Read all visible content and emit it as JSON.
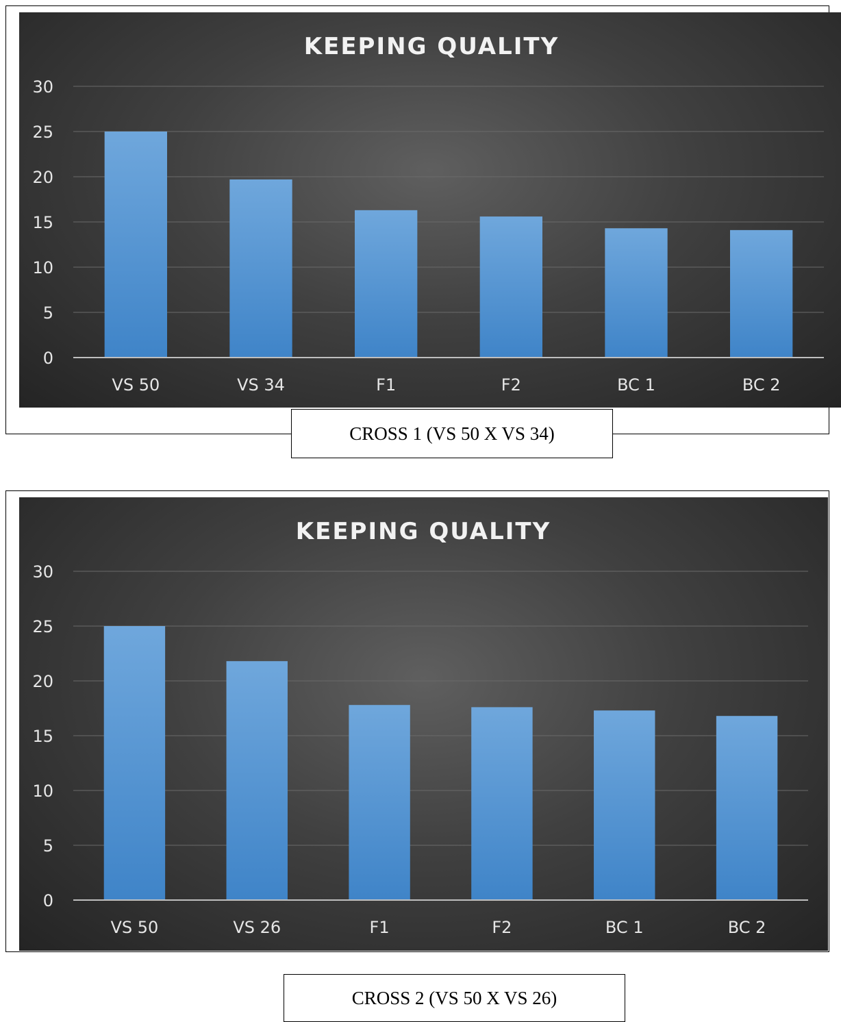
{
  "chart_data": [
    {
      "type": "bar",
      "title": "KEEPING QUALITY",
      "categories": [
        "VS 50",
        "VS 34",
        "F1",
        "F2",
        "BC 1",
        "BC 2"
      ],
      "values": [
        25.0,
        19.7,
        16.3,
        15.6,
        14.3,
        14.1
      ],
      "ylim": [
        0,
        30
      ],
      "yticks": [
        "0",
        "5",
        "10",
        "15",
        "20",
        "25",
        "30"
      ],
      "grid": true,
      "bar_color": "#5b9bd5",
      "caption": "CROSS 1 (VS 50 X VS 34)"
    },
    {
      "type": "bar",
      "title": "KEEPING QUALITY",
      "categories": [
        "VS 50",
        "VS 26",
        "F1",
        "F2",
        "BC 1",
        "BC 2"
      ],
      "values": [
        25.0,
        21.8,
        17.8,
        17.6,
        17.3,
        16.8
      ],
      "ylim": [
        0,
        30
      ],
      "yticks": [
        "0",
        "5",
        "10",
        "15",
        "20",
        "25",
        "30"
      ],
      "grid": true,
      "bar_color": "#5b9bd5",
      "caption": "CROSS 2 (VS 50 X VS 26)"
    }
  ]
}
